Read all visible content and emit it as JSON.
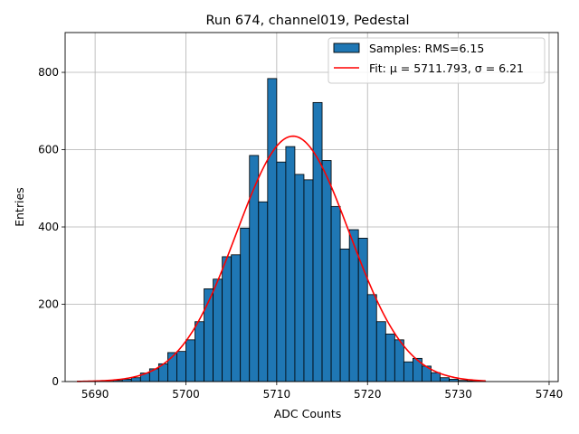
{
  "chart_data": {
    "type": "bar",
    "title": "Run 674, channel019, Pedestal",
    "xlabel": "ADC Counts",
    "ylabel": "Entries",
    "xlim": [
      5686.7,
      5741.0
    ],
    "ylim": [
      0,
      903
    ],
    "xticks": [
      5690,
      5700,
      5710,
      5720,
      5730,
      5740
    ],
    "yticks": [
      0,
      200,
      400,
      600,
      800
    ],
    "grid": true,
    "legend_position": "top-right",
    "histogram": {
      "name": "Samples: RMS=6.15",
      "color": "#1f77b4",
      "edge_color": "#000000",
      "bin_width": 1,
      "bin_start": 5690,
      "values": [
        1,
        1,
        3,
        6,
        10,
        22,
        33,
        46,
        75,
        78,
        108,
        155,
        240,
        265,
        323,
        328,
        397,
        585,
        465,
        784,
        568,
        608,
        536,
        522,
        722,
        572,
        453,
        343,
        393,
        371,
        225,
        155,
        123,
        108,
        51,
        60,
        40,
        23,
        10,
        6,
        3,
        2,
        1
      ]
    },
    "fit": {
      "name": "Fit: $\\mu$ = 5711.793, $\\sigma$ = 6.21",
      "legend_text": "Fit: μ = 5711.793, σ = 6.21",
      "color": "#ff0000",
      "mu": 5711.793,
      "sigma": 6.21,
      "amplitude": 635,
      "x_range": [
        5688,
        5733
      ]
    }
  }
}
